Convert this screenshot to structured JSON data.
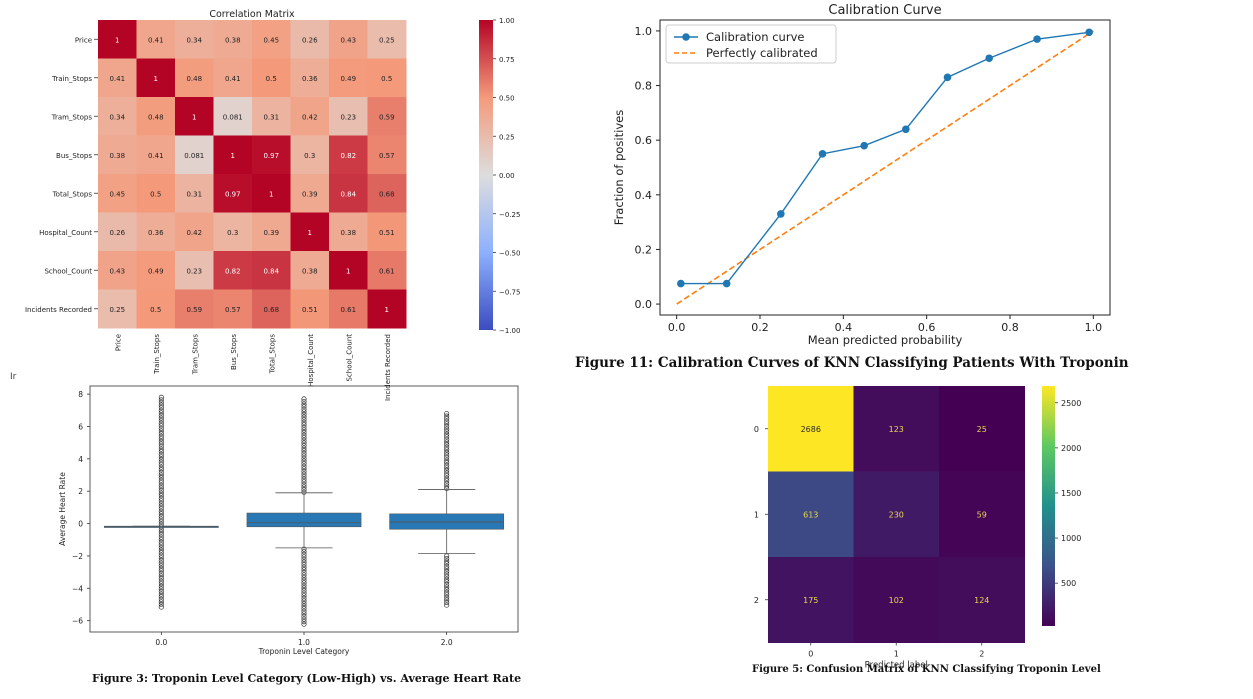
{
  "captions": {
    "calibration": "Figure 11: Calibration Curves of KNN Classifying Patients With Troponin",
    "boxplot": "Figure 3: Troponin Level Category (Low-High) vs. Average Heart Rate",
    "confusion": "Figure 5: Confusion Matrix of KNN Classifying Troponin Level"
  },
  "stray_text": "Ir",
  "colors": {
    "calibration_line": "#1f77b4",
    "perfect_line": "#ff7f0e",
    "box_fill": "#2878b5"
  },
  "chart_data": [
    {
      "id": "correlation-heatmap",
      "type": "heatmap",
      "title": "Correlation Matrix",
      "row_labels": [
        "Price",
        "Train_Stops",
        "Tram_Stops",
        "Bus_Stops",
        "Total_Stops",
        "Hospital_Count",
        "School_Count",
        "Incidents Recorded"
      ],
      "col_labels": [
        "Price",
        "Train_Stops",
        "Tram_Stops",
        "Bus_Stops",
        "Total_Stops",
        "Hospital_Count",
        "School_Count",
        "Incidents Recorded"
      ],
      "values": [
        [
          "1",
          "0.41",
          "0.34",
          "0.38",
          "0.45",
          "0.26",
          "0.43",
          "0.25"
        ],
        [
          "0.41",
          "1",
          "0.48",
          "0.41",
          "0.5",
          "0.36",
          "0.49",
          "0.5"
        ],
        [
          "0.34",
          "0.48",
          "1",
          "0.081",
          "0.31",
          "0.42",
          "0.23",
          "0.59"
        ],
        [
          "0.38",
          "0.41",
          "0.081",
          "1",
          "0.97",
          "0.3",
          "0.82",
          "0.57"
        ],
        [
          "0.45",
          "0.5",
          "0.31",
          "0.97",
          "1",
          "0.39",
          "0.84",
          "0.68"
        ],
        [
          "0.26",
          "0.36",
          "0.42",
          "0.3",
          "0.39",
          "1",
          "0.38",
          "0.51"
        ],
        [
          "0.43",
          "0.49",
          "0.23",
          "0.82",
          "0.84",
          "0.38",
          "1",
          "0.61"
        ],
        [
          "0.25",
          "0.5",
          "0.59",
          "0.57",
          "0.68",
          "0.51",
          "0.61",
          "1"
        ]
      ],
      "colorbar_ticks": [
        "1.00",
        "0.75",
        "0.50",
        "0.25",
        "0.00",
        "−0.25",
        "−0.50",
        "−0.75",
        "−1.00"
      ],
      "vmin": -1,
      "vmax": 1,
      "colormap": "coolwarm"
    },
    {
      "id": "calibration-curve",
      "type": "line",
      "title": "Calibration Curve",
      "xlabel": "Mean predicted probability",
      "ylabel": "Fraction of positives",
      "xlim": [
        -0.04,
        1.04
      ],
      "ylim": [
        -0.04,
        1.04
      ],
      "xticks": [
        "0.0",
        "0.2",
        "0.4",
        "0.6",
        "0.8",
        "1.0"
      ],
      "yticks": [
        "0.0",
        "0.2",
        "0.4",
        "0.6",
        "0.8",
        "1.0"
      ],
      "legend_position": "top-left",
      "grid": false,
      "series": [
        {
          "name": "Calibration curve",
          "x": [
            0.01,
            0.12,
            0.25,
            0.35,
            0.45,
            0.55,
            0.65,
            0.75,
            0.865,
            0.99
          ],
          "y": [
            0.075,
            0.075,
            0.33,
            0.55,
            0.58,
            0.64,
            0.83,
            0.9,
            0.97,
            0.995
          ]
        },
        {
          "name": "Perfectly calibrated",
          "style": "dashed",
          "x": [
            0,
            1
          ],
          "y": [
            0,
            1
          ]
        }
      ]
    },
    {
      "id": "troponin-boxplot",
      "type": "box",
      "xlabel": "Troponin Level Category",
      "ylabel": "Average Heart Rate",
      "ylim": [
        -6.7,
        8.5
      ],
      "categories": [
        "0.0",
        "1.0",
        "2.0"
      ],
      "yticks": [
        "8",
        "6",
        "4",
        "2",
        "0",
        "−2",
        "−4",
        "−6"
      ],
      "boxes": [
        {
          "q1": -0.17,
          "median": -0.17,
          "q3": -0.17,
          "whisker_low": -0.17,
          "whisker_high": -0.17,
          "outlier_range": [
            -5.2,
            7.8
          ]
        },
        {
          "q1": -0.2,
          "median": 0.05,
          "q3": 0.65,
          "whisker_low": -1.5,
          "whisker_high": 1.9,
          "outlier_range": [
            -6.3,
            7.7
          ]
        },
        {
          "q1": -0.35,
          "median": 0.1,
          "q3": 0.6,
          "whisker_low": -1.85,
          "whisker_high": 2.1,
          "outlier_range": [
            -5.1,
            6.8
          ]
        }
      ]
    },
    {
      "id": "confusion-matrix",
      "type": "heatmap",
      "xlabel": "Predicted label",
      "row_labels": [
        "0",
        "1",
        "2"
      ],
      "col_labels": [
        "0",
        "1",
        "2"
      ],
      "values": [
        [
          2686,
          123,
          25
        ],
        [
          613,
          230,
          59
        ],
        [
          175,
          102,
          124
        ]
      ],
      "colorbar_ticks": [
        "2500",
        "2000",
        "1500",
        "1000",
        "500"
      ],
      "vmin": 25,
      "vmax": 2686,
      "colormap": "viridis"
    }
  ]
}
